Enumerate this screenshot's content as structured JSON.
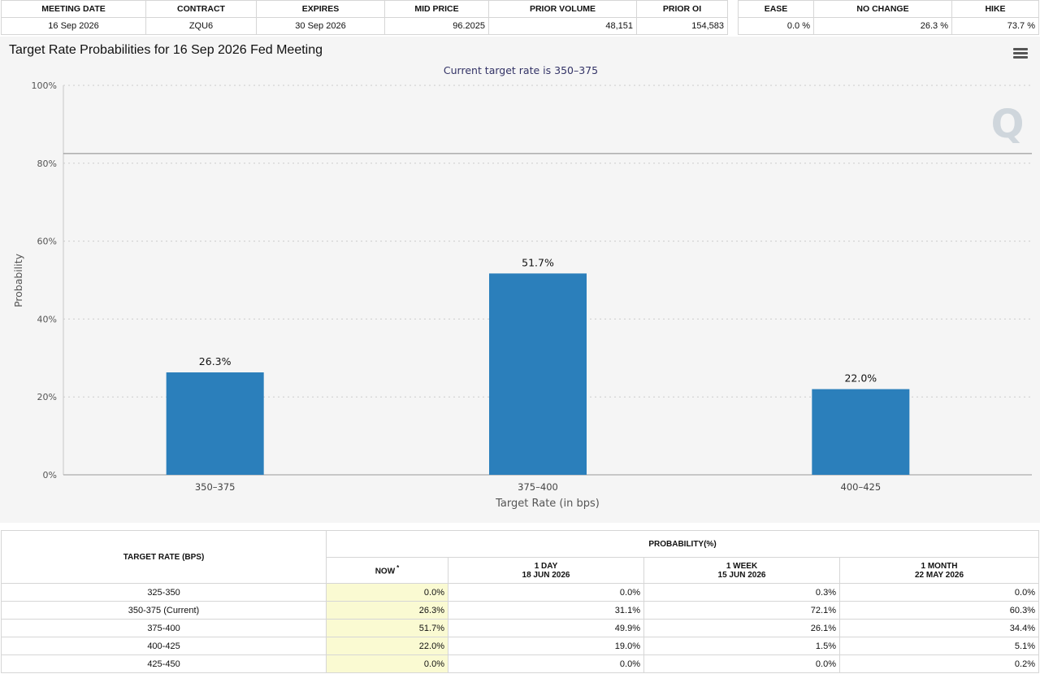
{
  "meeting_table": {
    "headers": [
      "MEETING DATE",
      "CONTRACT",
      "EXPIRES",
      "MID PRICE",
      "PRIOR VOLUME",
      "PRIOR OI"
    ],
    "row": [
      "16 Sep 2026",
      "ZQU6",
      "30 Sep 2026",
      "96.2025",
      "48,151",
      "154,583"
    ]
  },
  "summary_table": {
    "headers": [
      "EASE",
      "NO CHANGE",
      "HIKE"
    ],
    "row": [
      "0.0 %",
      "26.3 %",
      "73.7 %"
    ]
  },
  "chart": {
    "title": "Target Rate Probabilities for 16 Sep 2026 Fed Meeting",
    "menu_icon": "hamburger-menu-icon",
    "watermark": "Q",
    "bar_color": "#2b7fbb"
  },
  "chart_data": {
    "type": "bar",
    "title": "Target Rate Probabilities for 16 Sep 2026 Fed Meeting",
    "subtitle": "Current target rate is 350–375",
    "categories": [
      "350–375",
      "375–400",
      "400–425"
    ],
    "values": [
      26.3,
      51.7,
      22.0
    ],
    "data_labels": [
      "26.3%",
      "51.7%",
      "22.0%"
    ],
    "xlabel": "Target Rate (in bps)",
    "ylabel": "Probability",
    "ylim": [
      0,
      100
    ],
    "y_ticks": [
      0,
      20,
      40,
      60,
      80,
      100
    ],
    "y_tick_labels": [
      "0%",
      "20%",
      "40%",
      "60%",
      "80%",
      "100%"
    ],
    "reference_line": 82.5,
    "grid": true,
    "legend": "none"
  },
  "bottom_table": {
    "target_rate_header": "TARGET RATE (BPS)",
    "probability_header": "PROBABILITY(%)",
    "columns": [
      {
        "title": "NOW",
        "marker": "*",
        "date": ""
      },
      {
        "title": "1 DAY",
        "date": "18 JUN 2026"
      },
      {
        "title": "1 WEEK",
        "date": "15 JUN 2026"
      },
      {
        "title": "1 MONTH",
        "date": "22 MAY 2026"
      }
    ],
    "rows": [
      {
        "rate": "325-350",
        "values": [
          "0.0%",
          "0.0%",
          "0.3%",
          "0.0%"
        ]
      },
      {
        "rate": "350-375 (Current)",
        "values": [
          "26.3%",
          "31.1%",
          "72.1%",
          "60.3%"
        ]
      },
      {
        "rate": "375-400",
        "values": [
          "51.7%",
          "49.9%",
          "26.1%",
          "34.4%"
        ]
      },
      {
        "rate": "400-425",
        "values": [
          "22.0%",
          "19.0%",
          "1.5%",
          "5.1%"
        ]
      },
      {
        "rate": "425-450",
        "values": [
          "0.0%",
          "0.0%",
          "0.0%",
          "0.2%"
        ]
      }
    ]
  }
}
